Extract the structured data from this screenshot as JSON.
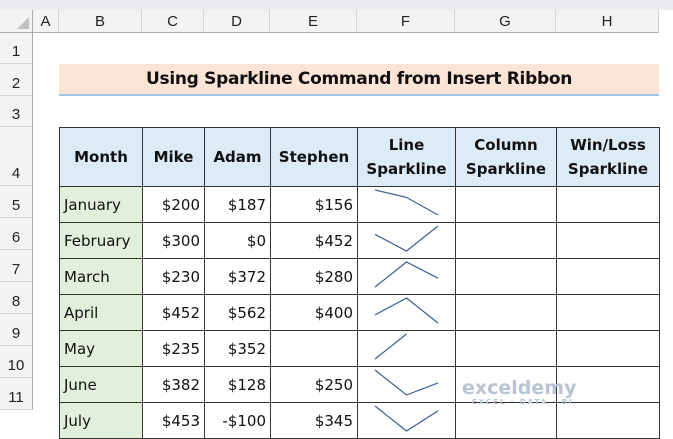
{
  "columns": [
    "A",
    "B",
    "C",
    "D",
    "E",
    "F",
    "G",
    "H"
  ],
  "rows": [
    "1",
    "2",
    "3",
    "4",
    "5",
    "6",
    "7",
    "8",
    "9",
    "10",
    "11"
  ],
  "title": "Using Sparkline Command from Insert Ribbon",
  "table": {
    "headers": [
      "Month",
      "Mike",
      "Adam",
      "Stephen",
      "Line Sparkline",
      "Column Sparkline",
      "Win/Loss Sparkline"
    ],
    "rows": [
      {
        "month": "January",
        "mike": "$200",
        "adam": "$187",
        "stephen": "$156",
        "values": [
          200,
          187,
          156
        ]
      },
      {
        "month": "February",
        "mike": "$300",
        "adam": "$0",
        "stephen": "$452",
        "values": [
          300,
          0,
          452
        ]
      },
      {
        "month": "March",
        "mike": "$230",
        "adam": "$372",
        "stephen": "$280",
        "values": [
          230,
          372,
          280
        ]
      },
      {
        "month": "April",
        "mike": "$452",
        "adam": "$562",
        "stephen": "$400",
        "values": [
          452,
          562,
          400
        ]
      },
      {
        "month": "May",
        "mike": "$235",
        "adam": "$352",
        "stephen": "",
        "values": [
          235,
          352,
          null
        ]
      },
      {
        "month": "June",
        "mike": "$382",
        "adam": "$128",
        "stephen": "$250",
        "values": [
          382,
          128,
          250
        ]
      },
      {
        "month": "July",
        "mike": "$453",
        "adam": "-$100",
        "stephen": "$345",
        "values": [
          453,
          -100,
          345
        ]
      }
    ]
  },
  "sparkline_color": "#3a5f94",
  "watermark": {
    "name": "exceldemy",
    "tagline": "EXCEL · DATA · BI"
  }
}
